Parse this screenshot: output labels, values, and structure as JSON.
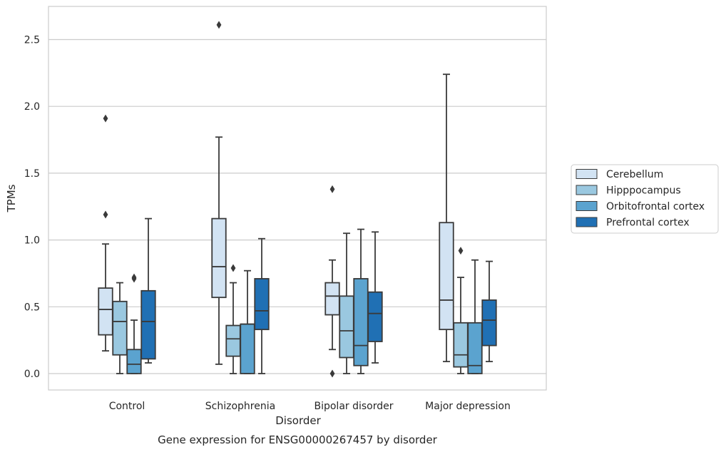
{
  "chart_data": {
    "type": "box",
    "title": "",
    "caption": "Gene expression for ENSG00000267457 by disorder",
    "xlabel": "Disorder",
    "ylabel": "TPMs",
    "ylim": [
      -0.12,
      2.75
    ],
    "yticks": [
      0.0,
      0.5,
      1.0,
      1.5,
      2.0,
      2.5
    ],
    "ytick_labels": [
      "0.0",
      "0.5",
      "1.0",
      "1.5",
      "2.0",
      "2.5"
    ],
    "categories": [
      "Control",
      "Schizophrenia",
      "Bipolar disorder",
      "Major depression"
    ],
    "grid": "horizontal",
    "legend_position": "right",
    "series": [
      {
        "name": "Cerebellum",
        "color": "#d2e3f3",
        "boxes": [
          {
            "whislo": 0.17,
            "q1": 0.29,
            "med": 0.48,
            "q3": 0.64,
            "whishi": 0.97,
            "fliers": [
              1.19,
              1.91
            ]
          },
          {
            "whislo": 0.07,
            "q1": 0.57,
            "med": 0.8,
            "q3": 1.16,
            "whishi": 1.77,
            "fliers": [
              2.61
            ]
          },
          {
            "whislo": 0.18,
            "q1": 0.44,
            "med": 0.58,
            "q3": 0.68,
            "whishi": 0.85,
            "fliers": [
              0.0,
              1.38
            ]
          },
          {
            "whislo": 0.09,
            "q1": 0.33,
            "med": 0.55,
            "q3": 1.13,
            "whishi": 2.24,
            "fliers": []
          }
        ]
      },
      {
        "name": "Hipppocampus",
        "color": "#9ac8e0",
        "boxes": [
          {
            "whislo": 0.0,
            "q1": 0.14,
            "med": 0.39,
            "q3": 0.54,
            "whishi": 0.68,
            "fliers": []
          },
          {
            "whislo": 0.0,
            "q1": 0.13,
            "med": 0.26,
            "q3": 0.36,
            "whishi": 0.68,
            "fliers": [
              0.79
            ]
          },
          {
            "whislo": 0.0,
            "q1": 0.12,
            "med": 0.32,
            "q3": 0.58,
            "whishi": 1.05,
            "fliers": []
          },
          {
            "whislo": 0.0,
            "q1": 0.05,
            "med": 0.14,
            "q3": 0.38,
            "whishi": 0.72,
            "fliers": [
              0.92
            ]
          }
        ]
      },
      {
        "name": "Orbitofrontal cortex",
        "color": "#5ba3cf",
        "boxes": [
          {
            "whislo": 0.0,
            "q1": 0.0,
            "med": 0.07,
            "q3": 0.18,
            "whishi": 0.4,
            "fliers": [
              0.71,
              0.72
            ]
          },
          {
            "whislo": 0.0,
            "q1": 0.0,
            "med": 0.37,
            "q3": 0.37,
            "whishi": 0.77,
            "fliers": []
          },
          {
            "whislo": 0.0,
            "q1": 0.06,
            "med": 0.21,
            "q3": 0.71,
            "whishi": 1.08,
            "fliers": []
          },
          {
            "whislo": 0.0,
            "q1": 0.0,
            "med": 0.06,
            "q3": 0.38,
            "whishi": 0.85,
            "fliers": []
          }
        ]
      },
      {
        "name": "Prefrontal cortex",
        "color": "#2070b4",
        "boxes": [
          {
            "whislo": 0.08,
            "q1": 0.11,
            "med": 0.39,
            "q3": 0.62,
            "whishi": 1.16,
            "fliers": []
          },
          {
            "whislo": 0.0,
            "q1": 0.33,
            "med": 0.47,
            "q3": 0.71,
            "whishi": 1.01,
            "fliers": []
          },
          {
            "whislo": 0.08,
            "q1": 0.24,
            "med": 0.45,
            "q3": 0.61,
            "whishi": 1.06,
            "fliers": []
          },
          {
            "whislo": 0.09,
            "q1": 0.21,
            "med": 0.4,
            "q3": 0.55,
            "whishi": 0.84,
            "fliers": []
          }
        ]
      }
    ]
  }
}
